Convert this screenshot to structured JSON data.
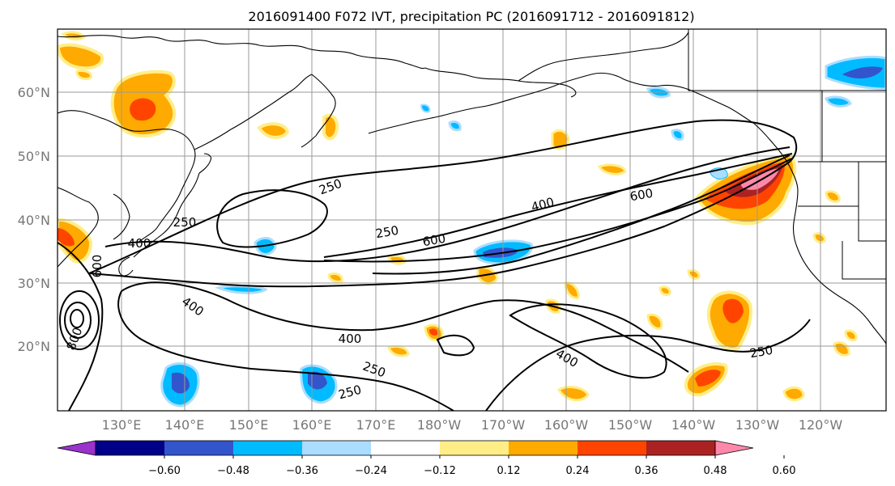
{
  "title": "2016091400 F072 IVT, precipitation PC (2016091712 - 2016091812)",
  "lat_labels": [
    "60°N",
    "50°N",
    "40°N",
    "30°N",
    "20°N"
  ],
  "lon_labels": [
    "130°E",
    "140°E",
    "150°E",
    "160°E",
    "170°E",
    "180°W",
    "170°W",
    "160°W",
    "150°W",
    "140°W",
    "130°W",
    "120°W"
  ],
  "colorbar": {
    "colors": [
      "#9933cc",
      "#000088",
      "#3355cc",
      "#00bbff",
      "#aaddff",
      "#ffffff",
      "#ffee88",
      "#ffaa00",
      "#ff4400",
      "#aa2222",
      "#ff88aa"
    ],
    "under_color": "#9933cc",
    "over_color": "#ff88aa",
    "tick_labels": [
      "−0.60",
      "−0.48",
      "−0.36",
      "−0.24",
      "−0.12",
      "0.12",
      "0.24",
      "0.36",
      "0.48",
      "0.60"
    ]
  },
  "ivt_contour_labels": [
    "250",
    "250",
    "250",
    "250",
    "250",
    "250",
    "400",
    "400",
    "400",
    "400",
    "400",
    "600",
    "600",
    "600",
    "800"
  ],
  "precip_colors": {
    "light_pos": "#ffee88",
    "orange": "#ffaa00",
    "red": "#ff4400",
    "dark_red": "#aa2222",
    "pink": "#ff88aa",
    "light_neg": "#aaddff",
    "cyan": "#00bbff",
    "blue": "#3355cc"
  }
}
